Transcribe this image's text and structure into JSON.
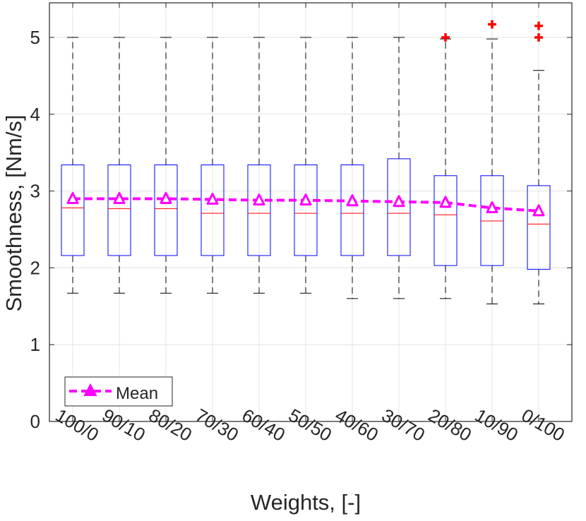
{
  "chart_data": {
    "type": "box",
    "xlabel": "Weights, [-]",
    "ylabel": "Smoothness, [Nm/s]",
    "ylim": [
      0,
      5.45
    ],
    "yticks": [
      0,
      1,
      2,
      3,
      4,
      5
    ],
    "grid": true,
    "legend": {
      "position": "bottom-left",
      "entries": [
        "Mean"
      ]
    },
    "categories": [
      "100/0",
      "90/10",
      "80/20",
      "70/30",
      "60/40",
      "50/50",
      "40/60",
      "30/70",
      "20/80",
      "10/90",
      "0/100"
    ],
    "boxes": [
      {
        "whisker_low": 1.67,
        "q1": 2.16,
        "median": 2.78,
        "q3": 3.34,
        "whisker_high": 5.0,
        "outliers": []
      },
      {
        "whisker_low": 1.67,
        "q1": 2.16,
        "median": 2.77,
        "q3": 3.34,
        "whisker_high": 5.0,
        "outliers": []
      },
      {
        "whisker_low": 1.67,
        "q1": 2.16,
        "median": 2.77,
        "q3": 3.34,
        "whisker_high": 5.0,
        "outliers": []
      },
      {
        "whisker_low": 1.67,
        "q1": 2.16,
        "median": 2.71,
        "q3": 3.34,
        "whisker_high": 5.0,
        "outliers": []
      },
      {
        "whisker_low": 1.67,
        "q1": 2.16,
        "median": 2.71,
        "q3": 3.34,
        "whisker_high": 5.0,
        "outliers": []
      },
      {
        "whisker_low": 1.67,
        "q1": 2.16,
        "median": 2.71,
        "q3": 3.34,
        "whisker_high": 5.0,
        "outliers": []
      },
      {
        "whisker_low": 1.6,
        "q1": 2.16,
        "median": 2.71,
        "q3": 3.34,
        "whisker_high": 5.0,
        "outliers": []
      },
      {
        "whisker_low": 1.6,
        "q1": 2.16,
        "median": 2.71,
        "q3": 3.42,
        "whisker_high": 5.0,
        "outliers": []
      },
      {
        "whisker_low": 1.6,
        "q1": 2.03,
        "median": 2.69,
        "q3": 3.2,
        "whisker_high": 4.98,
        "outliers": [
          5.0
        ]
      },
      {
        "whisker_low": 1.53,
        "q1": 2.03,
        "median": 2.61,
        "q3": 3.2,
        "whisker_high": 4.98,
        "outliers": [
          5.17
        ]
      },
      {
        "whisker_low": 1.53,
        "q1": 1.98,
        "median": 2.57,
        "q3": 3.07,
        "whisker_high": 4.57,
        "outliers": [
          5.0,
          5.15
        ]
      }
    ],
    "series": [
      {
        "name": "Mean",
        "type": "line",
        "style": "dashed",
        "marker": "triangle",
        "values": [
          2.9,
          2.9,
          2.9,
          2.89,
          2.88,
          2.88,
          2.87,
          2.86,
          2.85,
          2.78,
          2.74
        ]
      }
    ],
    "colors": {
      "box": "#0000ff",
      "median": "#ff0000",
      "whisker": "#000000",
      "outlier": "#ff0000",
      "mean": "#ff00ff",
      "grid": "#e3e3e3",
      "axis": "#262626"
    }
  }
}
